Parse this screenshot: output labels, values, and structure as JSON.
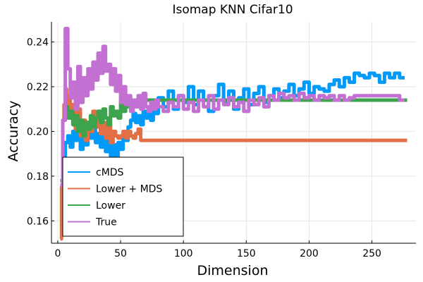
{
  "chart_data": {
    "type": "line",
    "title": "Isomap KNN Cifar10",
    "xlabel": "Dimension",
    "ylabel": "Accuracy",
    "xlim": [
      -5,
      285
    ],
    "ylim": [
      0.15,
      0.249
    ],
    "xticks": [
      0,
      50,
      100,
      150,
      200,
      250
    ],
    "yticks": [
      0.16,
      0.18,
      0.2,
      0.22,
      0.24
    ],
    "ytick_labels": [
      "0.16",
      "0.18",
      "0.20",
      "0.22",
      "0.24"
    ],
    "grid": true,
    "legend_position": "bottom-left",
    "series": [
      {
        "name": "cMDS",
        "color": "#009AFA",
        "x": [
          2,
          4,
          6,
          8,
          10,
          12,
          14,
          16,
          18,
          20,
          22,
          24,
          26,
          28,
          30,
          32,
          34,
          36,
          38,
          40,
          42,
          44,
          46,
          48,
          50,
          52,
          54,
          56,
          58,
          60,
          62,
          64,
          66,
          68,
          70,
          72,
          74,
          76,
          78,
          80,
          84,
          88,
          92,
          96,
          100,
          104,
          108,
          112,
          116,
          120,
          124,
          128,
          132,
          136,
          140,
          144,
          148,
          152,
          156,
          160,
          164,
          168,
          172,
          176,
          180,
          184,
          188,
          192,
          196,
          200,
          204,
          208,
          212,
          216,
          220,
          224,
          228,
          232,
          236,
          240,
          244,
          248,
          252,
          256,
          260,
          264,
          268,
          272,
          276
        ],
        "y": [
          0.176,
          0.186,
          0.195,
          0.198,
          0.193,
          0.2,
          0.196,
          0.202,
          0.192,
          0.199,
          0.194,
          0.201,
          0.197,
          0.203,
          0.195,
          0.199,
          0.193,
          0.198,
          0.191,
          0.196,
          0.189,
          0.194,
          0.188,
          0.195,
          0.192,
          0.198,
          0.196,
          0.202,
          0.205,
          0.208,
          0.204,
          0.207,
          0.203,
          0.209,
          0.206,
          0.211,
          0.205,
          0.212,
          0.208,
          0.215,
          0.211,
          0.218,
          0.21,
          0.216,
          0.213,
          0.22,
          0.212,
          0.218,
          0.214,
          0.209,
          0.216,
          0.221,
          0.213,
          0.218,
          0.21,
          0.215,
          0.219,
          0.212,
          0.217,
          0.22,
          0.213,
          0.216,
          0.219,
          0.215,
          0.218,
          0.221,
          0.216,
          0.219,
          0.222,
          0.217,
          0.22,
          0.219,
          0.218,
          0.221,
          0.223,
          0.22,
          0.224,
          0.222,
          0.226,
          0.225,
          0.224,
          0.226,
          0.225,
          0.222,
          0.226,
          0.224,
          0.226,
          0.224,
          0.224
        ]
      },
      {
        "name": "Lower + MDS",
        "color": "#E26F46",
        "x": [
          2,
          3,
          4,
          5,
          6,
          7,
          8,
          9,
          10,
          12,
          14,
          16,
          18,
          20,
          22,
          24,
          26,
          28,
          30,
          32,
          34,
          36,
          38,
          40,
          42,
          44,
          46,
          48,
          50,
          52,
          54,
          56,
          58,
          60,
          62,
          64,
          66,
          70,
          80,
          100,
          150,
          200,
          250,
          278
        ],
        "y": [
          0.152,
          0.175,
          0.205,
          0.212,
          0.219,
          0.214,
          0.209,
          0.216,
          0.206,
          0.212,
          0.201,
          0.21,
          0.198,
          0.205,
          0.196,
          0.204,
          0.2,
          0.209,
          0.202,
          0.207,
          0.199,
          0.204,
          0.197,
          0.203,
          0.195,
          0.2,
          0.198,
          0.197,
          0.198,
          0.2,
          0.197,
          0.2,
          0.198,
          0.197,
          0.199,
          0.201,
          0.196,
          0.196,
          0.196,
          0.196,
          0.196,
          0.196,
          0.196,
          0.196
        ]
      },
      {
        "name": "Lower",
        "color": "#3DA44D",
        "x": [
          2,
          4,
          6,
          8,
          10,
          12,
          14,
          16,
          18,
          20,
          22,
          24,
          26,
          28,
          30,
          32,
          34,
          36,
          38,
          40,
          42,
          44,
          46,
          48,
          50,
          52,
          54,
          56,
          58,
          60,
          64,
          70,
          80,
          100,
          150,
          200,
          250,
          278
        ],
        "y": [
          0.178,
          0.205,
          0.211,
          0.206,
          0.209,
          0.203,
          0.207,
          0.2,
          0.205,
          0.198,
          0.204,
          0.201,
          0.207,
          0.202,
          0.206,
          0.209,
          0.204,
          0.21,
          0.206,
          0.203,
          0.211,
          0.207,
          0.209,
          0.206,
          0.213,
          0.209,
          0.211,
          0.214,
          0.212,
          0.214,
          0.213,
          0.214,
          0.214,
          0.214,
          0.214,
          0.214,
          0.214,
          0.214
        ]
      },
      {
        "name": "True",
        "color": "#C271D2",
        "x": [
          2,
          4,
          6,
          8,
          10,
          12,
          14,
          16,
          18,
          20,
          22,
          24,
          26,
          28,
          30,
          32,
          34,
          36,
          38,
          40,
          42,
          44,
          46,
          48,
          50,
          52,
          54,
          56,
          58,
          60,
          62,
          64,
          66,
          68,
          70,
          72,
          74,
          76,
          78,
          80,
          84,
          88,
          92,
          96,
          100,
          104,
          108,
          112,
          116,
          120,
          124,
          128,
          132,
          136,
          140,
          144,
          148,
          152,
          156,
          160,
          164,
          168,
          172,
          176,
          180,
          184,
          188,
          192,
          196,
          200,
          204,
          208,
          212,
          216,
          220,
          224,
          228,
          232,
          236,
          240,
          244,
          248,
          252,
          256,
          260,
          264,
          268,
          272,
          276
        ],
        "y": [
          0.176,
          0.205,
          0.246,
          0.228,
          0.215,
          0.222,
          0.21,
          0.229,
          0.213,
          0.224,
          0.216,
          0.228,
          0.219,
          0.231,
          0.223,
          0.235,
          0.226,
          0.238,
          0.227,
          0.23,
          0.221,
          0.228,
          0.218,
          0.225,
          0.213,
          0.22,
          0.212,
          0.216,
          0.209,
          0.214,
          0.211,
          0.216,
          0.21,
          0.217,
          0.211,
          0.209,
          0.213,
          0.21,
          0.214,
          0.211,
          0.209,
          0.213,
          0.211,
          0.216,
          0.21,
          0.213,
          0.209,
          0.214,
          0.211,
          0.216,
          0.21,
          0.214,
          0.212,
          0.215,
          0.211,
          0.213,
          0.209,
          0.214,
          0.212,
          0.215,
          0.211,
          0.216,
          0.214,
          0.217,
          0.215,
          0.216,
          0.214,
          0.217,
          0.215,
          0.216,
          0.214,
          0.216,
          0.215,
          0.216,
          0.214,
          0.216,
          0.214,
          0.215,
          0.216,
          0.216,
          0.216,
          0.216,
          0.216,
          0.216,
          0.216,
          0.216,
          0.216,
          0.214,
          0.214
        ]
      }
    ]
  }
}
